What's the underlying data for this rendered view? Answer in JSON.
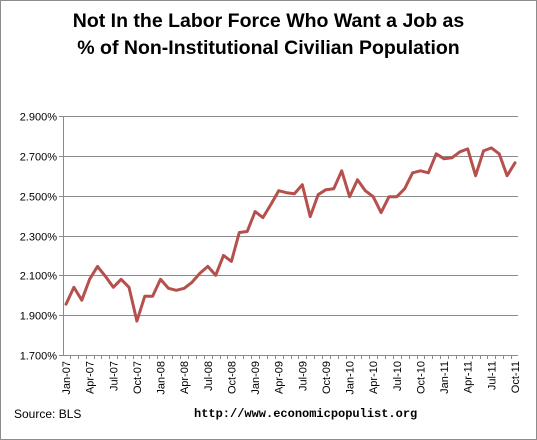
{
  "chart_data": {
    "type": "line",
    "title_lines": [
      "Not In the Labor Force Who Want a Job as",
      "%  of Non-Institutional Civilian Population"
    ],
    "xlabel": "",
    "ylabel": "",
    "ylim": [
      1.7,
      2.9
    ],
    "yticks": [
      "1.700%",
      "1.900%",
      "2.100%",
      "2.300%",
      "2.500%",
      "2.700%",
      "2.900%"
    ],
    "ytick_values": [
      1.7,
      1.9,
      2.1,
      2.3,
      2.5,
      2.7,
      2.9
    ],
    "xtick_labels": [
      "Jan-07",
      "Apr-07",
      "Jul-07",
      "Oct-07",
      "Jan-08",
      "Apr-08",
      "Jul-08",
      "Oct-08",
      "Jan-09",
      "Apr-09",
      "Jul-09",
      "Oct-09",
      "Jan-10",
      "Apr-10",
      "Jul-10",
      "Oct-10",
      "Jan-11",
      "Apr-11",
      "Jul-11",
      "Oct-11"
    ],
    "grid": "horizontal",
    "line_color": "#b5504d",
    "series": [
      {
        "x": [
          "Jan-07",
          "Feb-07",
          "Mar-07",
          "Apr-07",
          "May-07",
          "Jun-07",
          "Jul-07",
          "Aug-07",
          "Sep-07",
          "Oct-07",
          "Nov-07",
          "Dec-07",
          "Jan-08",
          "Feb-08",
          "Mar-08",
          "Apr-08",
          "May-08",
          "Jun-08",
          "Jul-08",
          "Aug-08",
          "Sep-08",
          "Oct-08",
          "Nov-08",
          "Dec-08",
          "Jan-09",
          "Feb-09",
          "Mar-09",
          "Apr-09",
          "May-09",
          "Jun-09",
          "Jul-09",
          "Aug-09",
          "Sep-09",
          "Oct-09",
          "Nov-09",
          "Dec-09",
          "Jan-10",
          "Feb-10",
          "Mar-10",
          "Apr-10",
          "May-10",
          "Jun-10",
          "Jul-10",
          "Aug-10",
          "Sep-10",
          "Oct-10",
          "Nov-10",
          "Dec-10",
          "Jan-11",
          "Feb-11",
          "Mar-11",
          "Apr-11",
          "May-11",
          "Jun-11",
          "Jul-11",
          "Aug-11",
          "Sep-11",
          "Oct-11"
        ],
        "values": [
          1.955,
          2.04,
          1.975,
          2.08,
          2.145,
          2.095,
          2.04,
          2.08,
          2.04,
          1.87,
          1.995,
          1.995,
          2.08,
          2.035,
          2.025,
          2.035,
          2.065,
          2.11,
          2.145,
          2.1,
          2.2,
          2.17,
          2.315,
          2.32,
          2.42,
          2.39,
          2.455,
          2.525,
          2.515,
          2.51,
          2.555,
          2.395,
          2.505,
          2.53,
          2.535,
          2.625,
          2.495,
          2.58,
          2.525,
          2.495,
          2.415,
          2.495,
          2.495,
          2.535,
          2.615,
          2.625,
          2.615,
          2.71,
          2.685,
          2.69,
          2.72,
          2.735,
          2.6,
          2.725,
          2.74,
          2.71,
          2.6,
          2.665
        ]
      }
    ]
  },
  "footer": {
    "source": "Source:  BLS",
    "url": "http://www.economicpopulist.org"
  }
}
